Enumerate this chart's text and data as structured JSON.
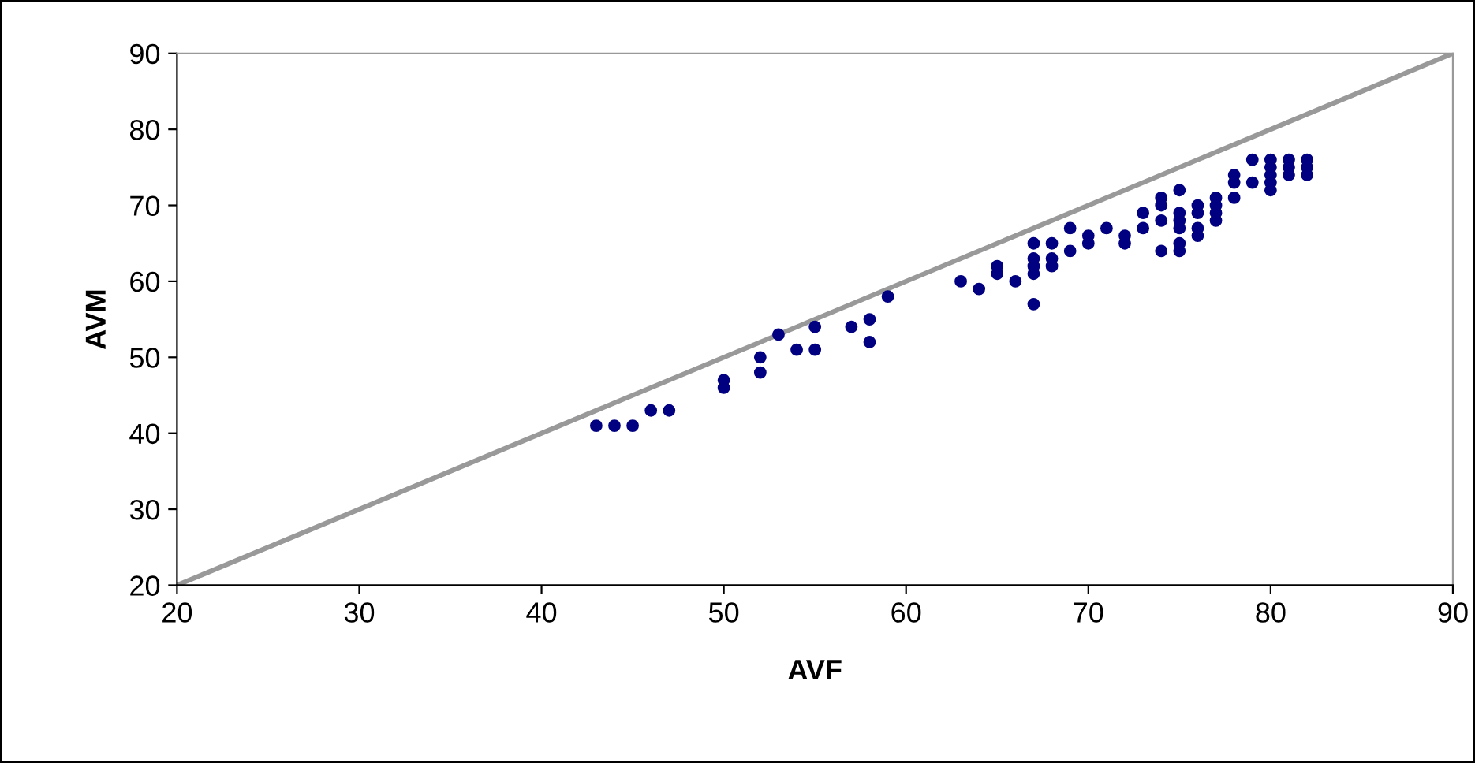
{
  "chart_data": {
    "type": "scatter",
    "xlabel": "AVF",
    "ylabel": "AVM",
    "xlim": [
      20,
      90
    ],
    "ylim": [
      20,
      90
    ],
    "xticks": [
      20,
      30,
      40,
      50,
      60,
      70,
      80,
      90
    ],
    "yticks": [
      20,
      30,
      40,
      50,
      60,
      70,
      80,
      90
    ],
    "grid": false,
    "legend": false,
    "marker": "circle",
    "series": [
      {
        "color": "#000080",
        "x": [
          43,
          44,
          45,
          46,
          47,
          50,
          50,
          52,
          52,
          53,
          54,
          55,
          55,
          57,
          58,
          58,
          59,
          63,
          64,
          65,
          65,
          66,
          67,
          67,
          67,
          67,
          67,
          68,
          68,
          68,
          69,
          69,
          70,
          70,
          71,
          72,
          72,
          73,
          73,
          74,
          74,
          74,
          74,
          75,
          75,
          75,
          75,
          75,
          75,
          76,
          76,
          76,
          76,
          77,
          77,
          77,
          77,
          78,
          78,
          78,
          79,
          79,
          80,
          80,
          80,
          80,
          80,
          81,
          81,
          81,
          82,
          82,
          82
        ],
        "values": [
          41,
          41,
          41,
          43,
          43,
          46,
          47,
          48,
          50,
          53,
          51,
          51,
          54,
          54,
          52,
          55,
          58,
          60,
          59,
          61,
          62,
          60,
          57,
          61,
          62,
          63,
          65,
          62,
          63,
          65,
          64,
          67,
          65,
          66,
          67,
          65,
          66,
          67,
          69,
          64,
          68,
          70,
          71,
          64,
          65,
          67,
          68,
          69,
          72,
          66,
          67,
          69,
          70,
          68,
          69,
          70,
          71,
          71,
          73,
          74,
          73,
          76,
          72,
          73,
          74,
          75,
          76,
          74,
          75,
          76,
          74,
          75,
          76
        ]
      },
      {
        "type": "line",
        "color": "#999999",
        "x": [
          20,
          90
        ],
        "values": [
          20,
          90
        ],
        "marker": "none",
        "line_style": "solid"
      }
    ]
  }
}
